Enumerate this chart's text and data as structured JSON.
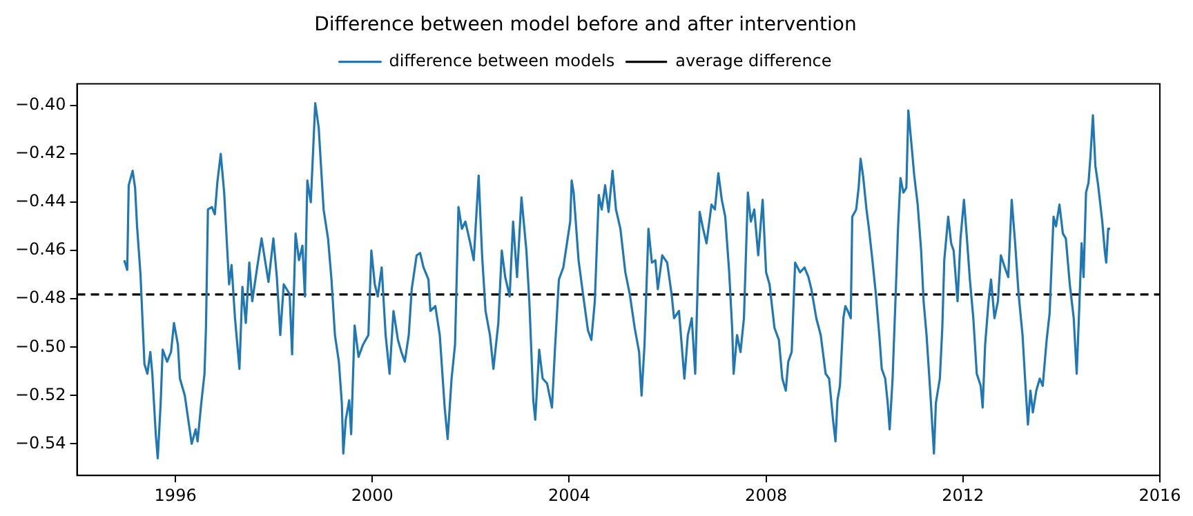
{
  "chart_data": {
    "type": "line",
    "title": "Difference between model before and after intervention",
    "x": [
      1994.96,
      1995.02,
      1995.05,
      1995.13,
      1995.18,
      1995.22,
      1995.29,
      1995.37,
      1995.43,
      1995.49,
      1995.53,
      1995.6,
      1995.64,
      1995.7,
      1995.74,
      1995.83,
      1995.91,
      1995.97,
      1996.05,
      1996.09,
      1996.19,
      1996.33,
      1996.41,
      1996.45,
      1996.52,
      1996.59,
      1996.62,
      1996.66,
      1996.74,
      1996.8,
      1996.85,
      1996.92,
      1996.99,
      1997.09,
      1997.14,
      1997.21,
      1997.3,
      1997.36,
      1997.43,
      1997.5,
      1997.56,
      1997.66,
      1997.75,
      1997.89,
      1997.99,
      1998.06,
      1998.13,
      1998.2,
      1998.32,
      1998.37,
      1998.44,
      1998.51,
      1998.58,
      1998.63,
      1998.68,
      1998.75,
      1998.84,
      1998.91,
      1999.01,
      1999.1,
      1999.17,
      1999.24,
      1999.32,
      1999.38,
      1999.41,
      1999.46,
      1999.53,
      1999.57,
      1999.64,
      1999.72,
      1999.81,
      1999.92,
      1999.98,
      2000.05,
      2000.11,
      2000.19,
      2000.27,
      2000.35,
      2000.43,
      2000.52,
      2000.59,
      2000.66,
      2000.74,
      2000.8,
      2000.9,
      2000.97,
      2001.04,
      2001.14,
      2001.18,
      2001.28,
      2001.37,
      2001.47,
      2001.53,
      2001.61,
      2001.68,
      2001.75,
      2001.82,
      2001.89,
      2001.99,
      2002.06,
      2002.16,
      2002.23,
      2002.3,
      2002.39,
      2002.46,
      2002.56,
      2002.63,
      2002.7,
      2002.79,
      2002.86,
      2002.94,
      2003.03,
      2003.13,
      2003.19,
      2003.27,
      2003.31,
      2003.39,
      2003.46,
      2003.55,
      2003.65,
      2003.71,
      2003.79,
      2003.88,
      2004.02,
      2004.05,
      2004.09,
      2004.19,
      2004.28,
      2004.38,
      2004.45,
      2004.52,
      2004.6,
      2004.66,
      2004.73,
      2004.8,
      2004.88,
      2004.95,
      2005.04,
      2005.14,
      2005.23,
      2005.33,
      2005.42,
      2005.47,
      2005.53,
      2005.61,
      2005.68,
      2005.75,
      2005.8,
      2005.89,
      2005.99,
      2006.08,
      2006.13,
      2006.23,
      2006.34,
      2006.41,
      2006.49,
      2006.56,
      2006.65,
      2006.72,
      2006.79,
      2006.89,
      2006.96,
      2007.03,
      2007.1,
      2007.17,
      2007.25,
      2007.31,
      2007.34,
      2007.41,
      2007.48,
      2007.55,
      2007.63,
      2007.69,
      2007.76,
      2007.84,
      2007.93,
      2008.0,
      2008.07,
      2008.17,
      2008.26,
      2008.33,
      2008.4,
      2008.45,
      2008.52,
      2008.59,
      2008.69,
      2008.78,
      2008.86,
      2008.92,
      2009.02,
      2009.11,
      2009.21,
      2009.28,
      2009.36,
      2009.41,
      2009.45,
      2009.5,
      2009.57,
      2009.61,
      2009.66,
      2009.72,
      2009.75,
      2009.83,
      2009.88,
      2009.92,
      2009.97,
      2010.04,
      2010.09,
      2010.16,
      2010.23,
      2010.3,
      2010.35,
      2010.42,
      2010.47,
      2010.51,
      2010.57,
      2010.64,
      2010.68,
      2010.73,
      2010.79,
      2010.85,
      2010.89,
      2010.94,
      2011.01,
      2011.08,
      2011.15,
      2011.2,
      2011.26,
      2011.34,
      2011.41,
      2011.45,
      2011.53,
      2011.58,
      2011.62,
      2011.7,
      2011.76,
      2011.81,
      2011.89,
      2011.95,
      2012.02,
      2012.08,
      2012.14,
      2012.21,
      2012.28,
      2012.36,
      2012.4,
      2012.45,
      2012.52,
      2012.57,
      2012.64,
      2012.71,
      2012.77,
      2012.85,
      2012.92,
      2012.99,
      2013.06,
      2013.13,
      2013.21,
      2013.27,
      2013.32,
      2013.37,
      2013.42,
      2013.49,
      2013.56,
      2013.62,
      2013.7,
      2013.76,
      2013.84,
      2013.89,
      2013.96,
      2014.03,
      2014.09,
      2014.17,
      2014.25,
      2014.31,
      2014.36,
      2014.41,
      2014.45,
      2014.5,
      2014.55,
      2014.59,
      2014.64,
      2014.69,
      2014.74,
      2014.78,
      2014.83,
      2014.88,
      2014.91,
      2014.95,
      2014.99
    ],
    "series": [
      {
        "name": "difference between models",
        "color": "#1f77b4",
        "values": [
          -0.464,
          -0.468,
          -0.433,
          -0.427,
          -0.434,
          -0.45,
          -0.47,
          -0.507,
          -0.511,
          -0.502,
          -0.511,
          -0.536,
          -0.546,
          -0.523,
          -0.501,
          -0.506,
          -0.502,
          -0.49,
          -0.499,
          -0.513,
          -0.52,
          -0.54,
          -0.534,
          -0.539,
          -0.524,
          -0.511,
          -0.492,
          -0.443,
          -0.442,
          -0.445,
          -0.432,
          -0.42,
          -0.436,
          -0.474,
          -0.466,
          -0.488,
          -0.509,
          -0.475,
          -0.49,
          -0.465,
          -0.481,
          -0.467,
          -0.455,
          -0.473,
          -0.455,
          -0.471,
          -0.495,
          -0.474,
          -0.478,
          -0.503,
          -0.453,
          -0.464,
          -0.458,
          -0.479,
          -0.431,
          -0.44,
          -0.399,
          -0.409,
          -0.443,
          -0.455,
          -0.472,
          -0.495,
          -0.506,
          -0.523,
          -0.544,
          -0.53,
          -0.522,
          -0.536,
          -0.491,
          -0.504,
          -0.499,
          -0.495,
          -0.46,
          -0.474,
          -0.479,
          -0.467,
          -0.495,
          -0.511,
          -0.485,
          -0.497,
          -0.502,
          -0.506,
          -0.495,
          -0.476,
          -0.462,
          -0.461,
          -0.467,
          -0.472,
          -0.485,
          -0.483,
          -0.495,
          -0.525,
          -0.538,
          -0.513,
          -0.499,
          -0.442,
          -0.451,
          -0.448,
          -0.457,
          -0.464,
          -0.429,
          -0.462,
          -0.485,
          -0.495,
          -0.509,
          -0.49,
          -0.46,
          -0.471,
          -0.479,
          -0.448,
          -0.471,
          -0.438,
          -0.46,
          -0.481,
          -0.522,
          -0.53,
          -0.501,
          -0.513,
          -0.515,
          -0.525,
          -0.501,
          -0.472,
          -0.467,
          -0.448,
          -0.431,
          -0.436,
          -0.464,
          -0.478,
          -0.493,
          -0.497,
          -0.481,
          -0.437,
          -0.443,
          -0.433,
          -0.444,
          -0.427,
          -0.443,
          -0.451,
          -0.469,
          -0.478,
          -0.492,
          -0.502,
          -0.52,
          -0.499,
          -0.451,
          -0.465,
          -0.464,
          -0.476,
          -0.462,
          -0.465,
          -0.478,
          -0.488,
          -0.485,
          -0.513,
          -0.495,
          -0.488,
          -0.511,
          -0.444,
          -0.451,
          -0.457,
          -0.441,
          -0.443,
          -0.428,
          -0.439,
          -0.446,
          -0.469,
          -0.492,
          -0.511,
          -0.495,
          -0.502,
          -0.488,
          -0.436,
          -0.448,
          -0.443,
          -0.462,
          -0.439,
          -0.469,
          -0.474,
          -0.492,
          -0.497,
          -0.513,
          -0.518,
          -0.506,
          -0.502,
          -0.465,
          -0.469,
          -0.467,
          -0.471,
          -0.476,
          -0.488,
          -0.495,
          -0.511,
          -0.513,
          -0.53,
          -0.539,
          -0.522,
          -0.516,
          -0.488,
          -0.483,
          -0.485,
          -0.488,
          -0.446,
          -0.443,
          -0.434,
          -0.422,
          -0.429,
          -0.443,
          -0.451,
          -0.464,
          -0.478,
          -0.495,
          -0.509,
          -0.513,
          -0.523,
          -0.534,
          -0.513,
          -0.474,
          -0.451,
          -0.43,
          -0.436,
          -0.434,
          -0.402,
          -0.413,
          -0.429,
          -0.441,
          -0.46,
          -0.481,
          -0.495,
          -0.52,
          -0.544,
          -0.523,
          -0.513,
          -0.492,
          -0.464,
          -0.446,
          -0.457,
          -0.46,
          -0.481,
          -0.455,
          -0.439,
          -0.455,
          -0.472,
          -0.488,
          -0.511,
          -0.516,
          -0.525,
          -0.499,
          -0.481,
          -0.472,
          -0.488,
          -0.481,
          -0.462,
          -0.467,
          -0.471,
          -0.439,
          -0.457,
          -0.478,
          -0.495,
          -0.516,
          -0.532,
          -0.518,
          -0.527,
          -0.518,
          -0.513,
          -0.516,
          -0.497,
          -0.486,
          -0.446,
          -0.45,
          -0.441,
          -0.453,
          -0.455,
          -0.474,
          -0.488,
          -0.511,
          -0.485,
          -0.457,
          -0.471,
          -0.436,
          -0.432,
          -0.421,
          -0.404,
          -0.425,
          -0.432,
          -0.439,
          -0.448,
          -0.46,
          -0.465,
          -0.451,
          -0.451
        ]
      }
    ],
    "ref_lines": [
      {
        "axis": "y",
        "value": -0.4782,
        "label": "average difference",
        "color": "#000000",
        "line_style": "dashed"
      }
    ],
    "xlim": [
      1994,
      2016
    ],
    "xticks": [
      1996,
      2000,
      2004,
      2008,
      2012,
      2016
    ],
    "ylim": [
      -0.5531,
      -0.391
    ],
    "yticks": [
      -0.54,
      -0.52,
      {
        "value": -0.5,
        "label": "−0.50"
      },
      -0.48,
      -0.46,
      -0.44,
      -0.42,
      {
        "value": -0.4,
        "label": "−0.40"
      }
    ],
    "grid": false,
    "legend": "top",
    "marker": "none",
    "line_style": "solid"
  }
}
